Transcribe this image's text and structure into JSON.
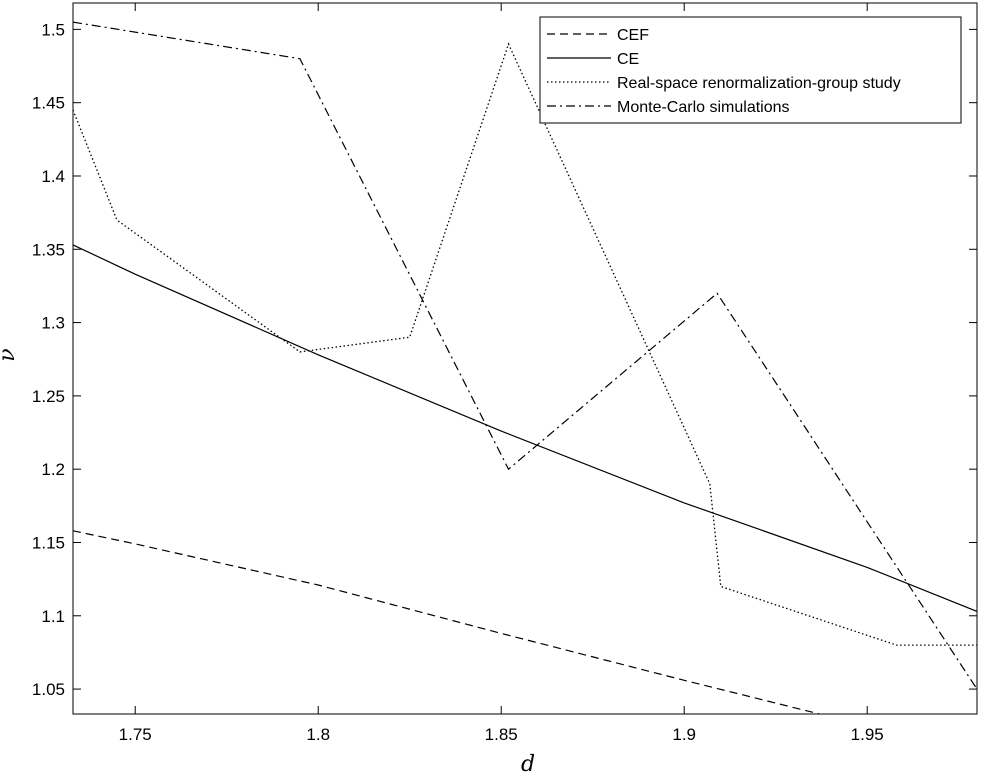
{
  "chart_data": {
    "type": "line",
    "xlabel": "d",
    "ylabel": "ν",
    "xlim": [
      1.733,
      1.98
    ],
    "ylim": [
      1.033,
      1.518
    ],
    "xticks": [
      1.75,
      1.8,
      1.85,
      1.9,
      1.95
    ],
    "xtick_labels": [
      "1.75",
      "1.8",
      "1.85",
      "1.9",
      "1.95"
    ],
    "yticks": [
      1.05,
      1.1,
      1.15,
      1.2,
      1.25,
      1.3,
      1.35,
      1.4,
      1.45,
      1.5
    ],
    "ytick_labels": [
      "1.05",
      "1.1",
      "1.15",
      "1.2",
      "1.25",
      "1.3",
      "1.35",
      "1.4",
      "1.45",
      "1.5"
    ],
    "grid": false,
    "legend_position": "top-right",
    "series": [
      {
        "name": "CEF",
        "style": "dashed",
        "color": "#000000",
        "x": [
          1.733,
          1.75,
          1.8,
          1.85,
          1.9,
          1.937
        ],
        "y": [
          1.158,
          1.149,
          1.121,
          1.088,
          1.056,
          1.033
        ]
      },
      {
        "name": "CE",
        "style": "solid",
        "color": "#000000",
        "x": [
          1.733,
          1.75,
          1.8,
          1.85,
          1.9,
          1.95,
          1.98
        ],
        "y": [
          1.353,
          1.333,
          1.278,
          1.226,
          1.177,
          1.133,
          1.103
        ]
      },
      {
        "name": "Real-space renormalization-group study",
        "style": "dotted",
        "color": "#000000",
        "x": [
          1.733,
          1.745,
          1.795,
          1.825,
          1.852,
          1.907,
          1.91,
          1.958,
          1.98
        ],
        "y": [
          1.445,
          1.37,
          1.28,
          1.29,
          1.49,
          1.19,
          1.12,
          1.08,
          1.08
        ]
      },
      {
        "name": "Monte-Carlo simulations",
        "style": "dashdot",
        "color": "#000000",
        "x": [
          1.733,
          1.795,
          1.852,
          1.909,
          1.98
        ],
        "y": [
          1.505,
          1.48,
          1.2,
          1.32,
          1.05
        ]
      }
    ]
  }
}
